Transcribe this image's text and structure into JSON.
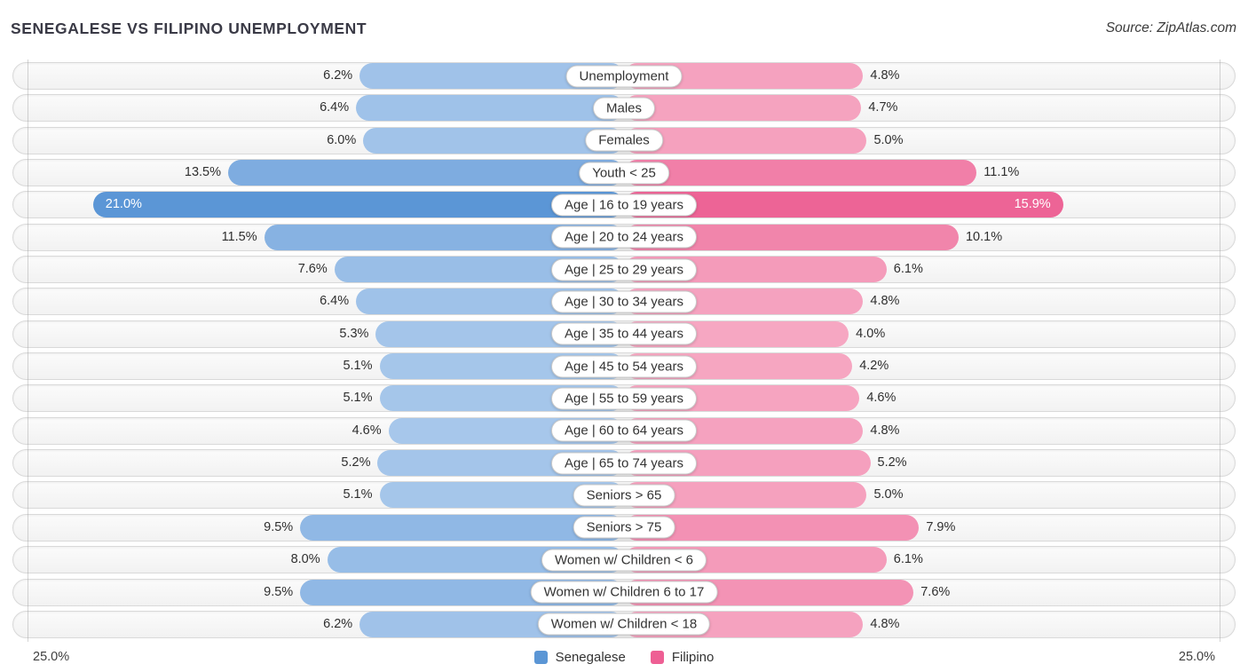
{
  "header": {
    "title": "SENEGALESE VS FILIPINO UNEMPLOYMENT",
    "source": "Source: ZipAtlas.com"
  },
  "axis": {
    "left_label": "25.0%",
    "right_label": "25.0%"
  },
  "legend": [
    {
      "label": "Senegalese",
      "color": "#5b96d5"
    },
    {
      "label": "Filipino",
      "color": "#ee5f94"
    }
  ],
  "chart_data": {
    "type": "bar",
    "orientation": "diverging-horizontal",
    "title": "SENEGALESE VS FILIPINO UNEMPLOYMENT",
    "value_suffix": "%",
    "axis_max_percent": 25.0,
    "legend_position": "bottom-center",
    "categories": [
      "Unemployment",
      "Males",
      "Females",
      "Youth < 25",
      "Age | 16 to 19 years",
      "Age | 20 to 24 years",
      "Age | 25 to 29 years",
      "Age | 30 to 34 years",
      "Age | 35 to 44 years",
      "Age | 45 to 54 years",
      "Age | 55 to 59 years",
      "Age | 60 to 64 years",
      "Age | 65 to 74 years",
      "Seniors > 65",
      "Seniors > 75",
      "Women w/ Children < 6",
      "Women w/ Children 6 to 17",
      "Women w/ Children < 18"
    ],
    "series": [
      {
        "name": "Senegalese",
        "side": "left",
        "values": [
          6.2,
          6.4,
          6.0,
          13.5,
          21.0,
          11.5,
          7.6,
          6.4,
          5.3,
          5.1,
          5.1,
          4.6,
          5.2,
          5.1,
          9.5,
          8.0,
          9.5,
          6.2
        ],
        "color_range": [
          "#a7c7eb",
          "#5b96d6"
        ]
      },
      {
        "name": "Filipino",
        "side": "right",
        "values": [
          4.8,
          4.7,
          5.0,
          11.1,
          15.9,
          10.1,
          6.1,
          4.8,
          4.0,
          4.2,
          4.6,
          4.8,
          5.2,
          5.0,
          7.9,
          6.1,
          7.6,
          4.8
        ],
        "color_range": [
          "#f6a7c2",
          "#ed6496"
        ]
      }
    ]
  }
}
